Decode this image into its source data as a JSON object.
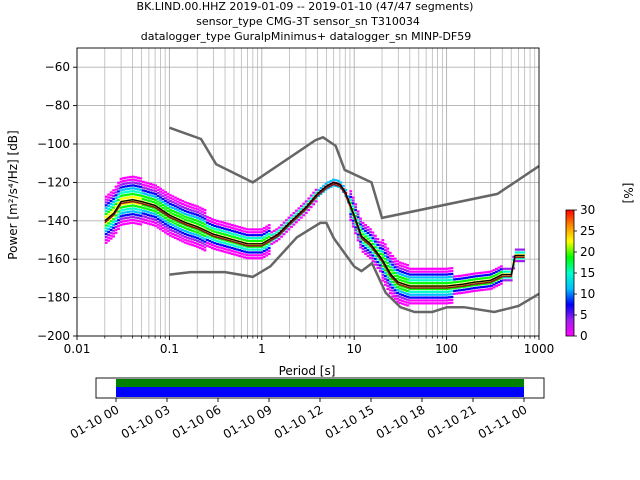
{
  "title_lines": [
    "BK.LIND.00.HHZ   2019-01-09 -- 2019-01-10  (47/47 segments)",
    "sensor_type CMG-3T sensor_sn T310034",
    "datalogger_type GuralpMinimus+ datalogger_sn MINP-DF59"
  ],
  "chart_data": {
    "type": "heatmap",
    "xlabel": "Period [s]",
    "ylabel": "Power [m²/s⁴/Hz] [dB]",
    "x_scale": "log",
    "xlim": [
      0.01,
      1000
    ],
    "ylim": [
      -200,
      -50
    ],
    "x_ticks": [
      {
        "value": 0.01,
        "label": "0.01"
      },
      {
        "value": 0.1,
        "label": "0.1"
      },
      {
        "value": 1,
        "label": "1"
      },
      {
        "value": 10,
        "label": "10"
      },
      {
        "value": 100,
        "label": "100"
      },
      {
        "value": 1000,
        "label": "1000"
      }
    ],
    "y_ticks": [
      -60,
      -80,
      -100,
      -120,
      -140,
      -160,
      -180,
      -200
    ],
    "grid": true,
    "noise_models": {
      "color": "#666666",
      "nhnm": {
        "period": [
          0.1,
          0.22,
          0.32,
          0.8,
          3.8,
          4.6,
          6.3,
          7.9,
          15.4,
          20,
          354.8,
          1000
        ],
        "power": [
          -91.5,
          -97.4,
          -110.5,
          -120,
          -98,
          -96.5,
          -101,
          -113.5,
          -120,
          -138.5,
          -126,
          -111.5
        ]
      },
      "nlnm": {
        "period": [
          0.1,
          0.17,
          0.4,
          0.8,
          1.24,
          2.4,
          4.3,
          5,
          6,
          10,
          12,
          15.6,
          21.9,
          31.6,
          45,
          70,
          101,
          154,
          328,
          600,
          1000
        ],
        "power": [
          -168,
          -166.7,
          -166.7,
          -169.2,
          -163.7,
          -148.6,
          -141.1,
          -141.1,
          -149,
          -163.8,
          -166.2,
          -162.1,
          -177.5,
          -185,
          -187.5,
          -187.5,
          -185,
          -185,
          -187.5,
          -184.4,
          -178
        ]
      }
    },
    "median_line": {
      "color": "#000000",
      "period": [
        0.02,
        0.025,
        0.03,
        0.04,
        0.05,
        0.07,
        0.1,
        0.15,
        0.2,
        0.3,
        0.5,
        0.7,
        1,
        1.5,
        2,
        3,
        4,
        5,
        6,
        7,
        8,
        10,
        12,
        15,
        20,
        25,
        30,
        40,
        60,
        100,
        150,
        200,
        300,
        400,
        500,
        550,
        600,
        700
      ],
      "power": [
        -140,
        -136,
        -130,
        -129,
        -130,
        -132,
        -137,
        -141,
        -143,
        -147,
        -150,
        -152,
        -152,
        -147,
        -141,
        -133,
        -126,
        -122,
        -120,
        -121,
        -125,
        -137,
        -148,
        -152,
        -160,
        -168,
        -172,
        -174,
        -174,
        -174,
        -173,
        -172,
        -171,
        -168,
        -168,
        -158,
        -158,
        -158
      ]
    },
    "mean_line": {
      "color": "#8a1a1a",
      "period": [
        0.02,
        0.025,
        0.03,
        0.04,
        0.05,
        0.07,
        0.1,
        0.15,
        0.2,
        0.3,
        0.5,
        0.7,
        1,
        1.5,
        2,
        3,
        4,
        5,
        6,
        7,
        8,
        10,
        12,
        15,
        20,
        25,
        30,
        40,
        60,
        100,
        150,
        200,
        300,
        400,
        500,
        550,
        600,
        700
      ],
      "power": [
        -141,
        -137,
        -131,
        -130,
        -131,
        -133,
        -138,
        -142,
        -144,
        -148,
        -151,
        -153,
        -153,
        -148,
        -142,
        -134,
        -127,
        -123,
        -121,
        -122,
        -126,
        -138,
        -149,
        -153,
        -161,
        -169,
        -173,
        -175,
        -175,
        -175,
        -174,
        -173,
        -172,
        -169,
        -169,
        -159,
        -159,
        -159
      ]
    },
    "colorbar": {
      "label": "[%]",
      "min": 0,
      "max": 30,
      "ticks": [
        0,
        5,
        10,
        15,
        20,
        25,
        30
      ],
      "colors": [
        "#ffffff",
        "#ff00ff",
        "#a020f0",
        "#0000ff",
        "#00bfff",
        "#00ffcc",
        "#00ff00",
        "#ffff00",
        "#ff8c00",
        "#ff0000"
      ]
    },
    "coverage": {
      "time_ticks": [
        "01-10 00",
        "01-10 03",
        "01-10 06",
        "01-10 09",
        "01-10 12",
        "01-10 15",
        "01-10 18",
        "01-10 21",
        "01-11 00"
      ],
      "colors": {
        "data": "#0000ff",
        "processed": "#008000"
      }
    }
  }
}
